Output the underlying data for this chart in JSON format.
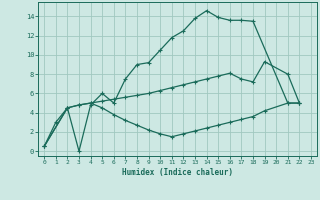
{
  "xlabel": "Humidex (Indice chaleur)",
  "background_color": "#cde8e3",
  "grid_color": "#a0c8c0",
  "line_color": "#1a6b5a",
  "xlim": [
    -0.5,
    23.5
  ],
  "ylim": [
    -0.5,
    15.5
  ],
  "xticks": [
    0,
    1,
    2,
    3,
    4,
    5,
    6,
    7,
    8,
    9,
    10,
    11,
    12,
    13,
    14,
    15,
    16,
    17,
    18,
    19,
    20,
    21,
    22,
    23
  ],
  "yticks": [
    0,
    2,
    4,
    6,
    8,
    10,
    12,
    14
  ],
  "series1_x": [
    0,
    1,
    2,
    3,
    4,
    5,
    6,
    7,
    8,
    9,
    10,
    11,
    12,
    13,
    14,
    15,
    16,
    17,
    18,
    21,
    22
  ],
  "series1_y": [
    0.5,
    3.0,
    4.5,
    0.0,
    4.8,
    6.0,
    5.0,
    7.5,
    9.0,
    9.2,
    10.5,
    11.8,
    12.5,
    13.8,
    14.6,
    13.9,
    13.6,
    13.6,
    13.5,
    5.0,
    5.0
  ],
  "series2_x": [
    0,
    2,
    3,
    4,
    5,
    6,
    7,
    8,
    9,
    10,
    11,
    12,
    13,
    14,
    15,
    16,
    17,
    18,
    19,
    21,
    22
  ],
  "series2_y": [
    0.5,
    4.5,
    4.8,
    5.0,
    5.2,
    5.4,
    5.6,
    5.8,
    6.0,
    6.3,
    6.6,
    6.9,
    7.2,
    7.5,
    7.8,
    8.1,
    7.5,
    7.2,
    9.3,
    8.0,
    5.0
  ],
  "series3_x": [
    0,
    2,
    3,
    4,
    5,
    6,
    7,
    8,
    9,
    10,
    11,
    12,
    13,
    14,
    15,
    16,
    17,
    18,
    19,
    21,
    22
  ],
  "series3_y": [
    0.5,
    4.5,
    4.8,
    5.0,
    4.5,
    3.8,
    3.2,
    2.7,
    2.2,
    1.8,
    1.5,
    1.8,
    2.1,
    2.4,
    2.7,
    3.0,
    3.3,
    3.6,
    4.2,
    5.0,
    5.0
  ]
}
